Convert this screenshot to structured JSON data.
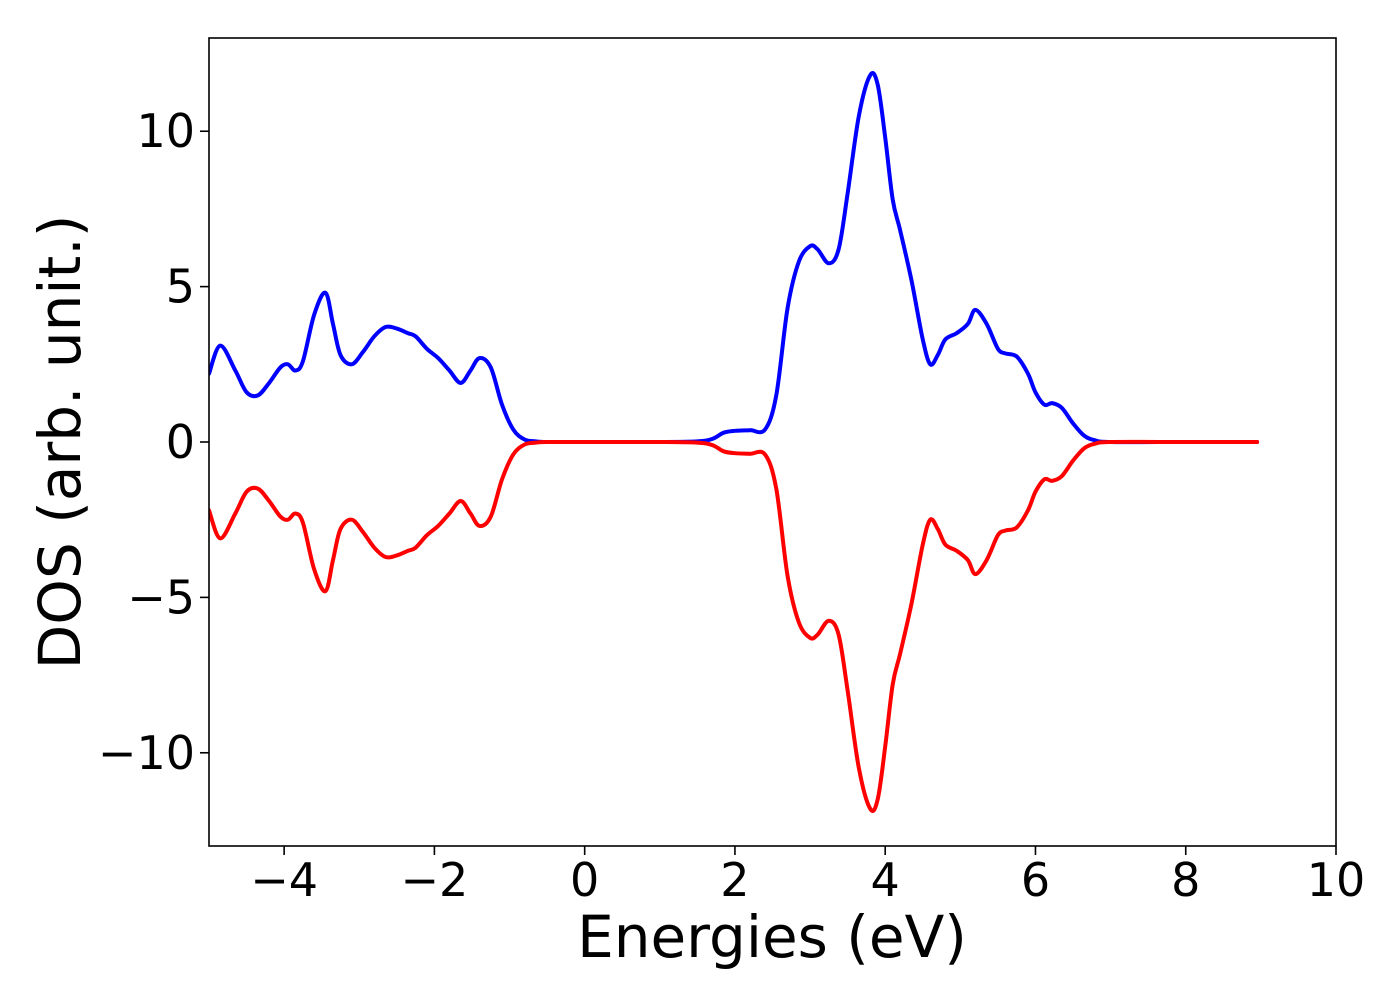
{
  "chart_data": {
    "type": "line",
    "title": "",
    "xlabel": "Energies (eV)",
    "ylabel": "DOS (arb. unit.)",
    "xlim": [
      -5,
      10
    ],
    "ylim": [
      -13,
      13
    ],
    "grid": false,
    "legend": "none",
    "x_ticks": [
      {
        "value": -4,
        "label": "−4"
      },
      {
        "value": -2,
        "label": "−2"
      },
      {
        "value": 0,
        "label": "0"
      },
      {
        "value": 2,
        "label": "2"
      },
      {
        "value": 4,
        "label": "4"
      },
      {
        "value": 6,
        "label": "6"
      },
      {
        "value": 8,
        "label": "8"
      },
      {
        "value": 10,
        "label": "10"
      }
    ],
    "y_ticks": [
      {
        "value": -10,
        "label": "−10"
      },
      {
        "value": -5,
        "label": "−5"
      },
      {
        "value": 0,
        "label": "0"
      },
      {
        "value": 5,
        "label": "5"
      },
      {
        "value": 10,
        "label": "10"
      }
    ],
    "series": [
      {
        "color": "#0000ff",
        "x": [
          -5.0,
          -4.85,
          -4.65,
          -4.5,
          -4.35,
          -4.2,
          -4.05,
          -3.95,
          -3.85,
          -3.75,
          -3.6,
          -3.45,
          -3.35,
          -3.25,
          -3.1,
          -2.95,
          -2.8,
          -2.65,
          -2.5,
          -2.35,
          -2.25,
          -2.1,
          -1.95,
          -1.8,
          -1.65,
          -1.52,
          -1.4,
          -1.25,
          -1.1,
          -0.95,
          -0.8,
          -0.65,
          -0.5,
          0.0,
          1.0,
          1.5,
          1.7,
          1.85,
          2.0,
          2.2,
          2.4,
          2.55,
          2.7,
          2.85,
          3.0,
          3.1,
          3.25,
          3.38,
          3.5,
          3.65,
          3.8,
          3.9,
          4.0,
          4.1,
          4.2,
          4.35,
          4.5,
          4.6,
          4.7,
          4.8,
          4.95,
          5.1,
          5.2,
          5.35,
          5.5,
          5.6,
          5.75,
          5.9,
          6.0,
          6.12,
          6.22,
          6.35,
          6.5,
          6.65,
          6.8,
          7.0,
          8.0,
          8.95
        ],
        "values": [
          2.2,
          3.1,
          2.3,
          1.6,
          1.5,
          1.9,
          2.4,
          2.5,
          2.3,
          2.6,
          4.1,
          4.8,
          3.8,
          2.8,
          2.5,
          2.9,
          3.4,
          3.7,
          3.65,
          3.5,
          3.4,
          3.0,
          2.7,
          2.3,
          1.9,
          2.3,
          2.7,
          2.4,
          1.2,
          0.4,
          0.08,
          0.02,
          0.0,
          0.0,
          0.0,
          0.02,
          0.1,
          0.3,
          0.36,
          0.38,
          0.4,
          1.5,
          4.3,
          5.8,
          6.3,
          6.2,
          5.75,
          6.2,
          8.0,
          10.5,
          11.8,
          11.5,
          9.8,
          7.8,
          6.8,
          5.2,
          3.3,
          2.5,
          2.8,
          3.3,
          3.5,
          3.8,
          4.25,
          3.8,
          3.0,
          2.85,
          2.75,
          2.2,
          1.6,
          1.2,
          1.25,
          1.1,
          0.6,
          0.2,
          0.05,
          0.0,
          0.0,
          0.0
        ]
      },
      {
        "color": "#ff0000",
        "x": [
          -5.0,
          -4.85,
          -4.65,
          -4.5,
          -4.35,
          -4.2,
          -4.05,
          -3.95,
          -3.85,
          -3.75,
          -3.6,
          -3.45,
          -3.35,
          -3.25,
          -3.1,
          -2.95,
          -2.8,
          -2.65,
          -2.5,
          -2.35,
          -2.25,
          -2.1,
          -1.95,
          -1.8,
          -1.65,
          -1.52,
          -1.4,
          -1.25,
          -1.1,
          -0.95,
          -0.8,
          -0.65,
          -0.5,
          0.0,
          1.0,
          1.5,
          1.7,
          1.85,
          2.0,
          2.2,
          2.4,
          2.55,
          2.7,
          2.85,
          3.0,
          3.1,
          3.25,
          3.38,
          3.5,
          3.65,
          3.8,
          3.9,
          4.0,
          4.1,
          4.2,
          4.35,
          4.5,
          4.6,
          4.7,
          4.8,
          4.95,
          5.1,
          5.2,
          5.35,
          5.5,
          5.6,
          5.75,
          5.9,
          6.0,
          6.12,
          6.22,
          6.35,
          6.5,
          6.65,
          6.8,
          7.0,
          8.0,
          8.95
        ],
        "values": [
          -2.2,
          -3.1,
          -2.3,
          -1.6,
          -1.5,
          -1.9,
          -2.4,
          -2.5,
          -2.3,
          -2.6,
          -4.1,
          -4.8,
          -3.8,
          -2.8,
          -2.5,
          -2.9,
          -3.4,
          -3.7,
          -3.65,
          -3.5,
          -3.4,
          -3.0,
          -2.7,
          -2.3,
          -1.9,
          -2.3,
          -2.7,
          -2.4,
          -1.2,
          -0.4,
          -0.08,
          -0.02,
          0.0,
          0.0,
          0.0,
          -0.02,
          -0.1,
          -0.3,
          -0.36,
          -0.38,
          -0.4,
          -1.5,
          -4.3,
          -5.8,
          -6.3,
          -6.2,
          -5.75,
          -6.2,
          -8.0,
          -10.5,
          -11.8,
          -11.5,
          -9.8,
          -7.8,
          -6.8,
          -5.2,
          -3.3,
          -2.5,
          -2.8,
          -3.3,
          -3.5,
          -3.8,
          -4.25,
          -3.8,
          -3.0,
          -2.85,
          -2.75,
          -2.2,
          -1.6,
          -1.2,
          -1.25,
          -1.1,
          -0.6,
          -0.2,
          -0.05,
          0.0,
          0.0,
          0.0
        ]
      }
    ]
  }
}
